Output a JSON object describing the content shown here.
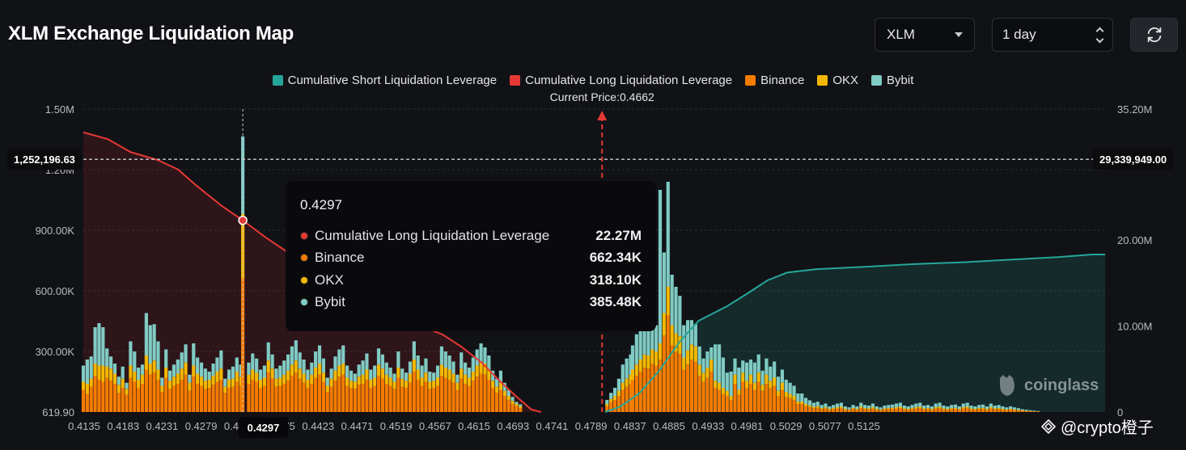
{
  "title": "XLM Exchange Liquidation Map",
  "controls": {
    "symbol": "XLM",
    "range": "1 day"
  },
  "legend": [
    {
      "label": "Cumulative Short Liquidation Leverage",
      "color": "#26a69a"
    },
    {
      "label": "Cumulative Long Liquidation Leverage",
      "color": "#e53935"
    },
    {
      "label": "Binance",
      "color": "#f57c00"
    },
    {
      "label": "OKX",
      "color": "#f5b800"
    },
    {
      "label": "Bybit",
      "color": "#80cbc4"
    }
  ],
  "current_price_label": "Current Price:0.4662",
  "tooltip": {
    "title": "0.4297",
    "rows": [
      {
        "name": "Cumulative Long Liquidation Leverage",
        "value": "22.27M",
        "color": "#e53935"
      },
      {
        "name": "Binance",
        "value": "662.34K",
        "color": "#f57c00"
      },
      {
        "name": "OKX",
        "value": "318.10K",
        "color": "#f5b800"
      },
      {
        "name": "Bybit",
        "value": "385.48K",
        "color": "#80cbc4"
      }
    ]
  },
  "ref_left_label": "1,252,196.63",
  "ref_right_label": "29,339,949.00",
  "x_active_label": "0.4297",
  "watermark": "coinglass",
  "handle": "@crypto橙子",
  "chart_data": {
    "type": "bar",
    "title": "XLM Exchange Liquidation Map",
    "x_ticks": [
      "0.4135",
      "0.4183",
      "0.4231",
      "0.4279",
      "0.4327",
      "0.4375",
      "0.4423",
      "0.4471",
      "0.4519",
      "0.4567",
      "0.4615",
      "0.4693",
      "0.4741",
      "0.4789",
      "0.4837",
      "0.4885",
      "0.4933",
      "0.4981",
      "0.5029",
      "0.5077",
      "0.5125"
    ],
    "y_left_ticks": [
      "619.90",
      "300.00K",
      "600.00K",
      "900.00K",
      "1.20M",
      "1.50M"
    ],
    "y_left_range": [
      0,
      1500000
    ],
    "y_right_ticks": [
      "0",
      "10.00M",
      "20.00M",
      "35.20M"
    ],
    "y_right_range": [
      0,
      35200000
    ],
    "x_range": [
      0.4135,
      0.5173
    ],
    "current_price": 0.4662,
    "highlight_price": 0.4297,
    "ref_left_value": 1252196.63,
    "ref_right_value": 29339949.0,
    "series_names": [
      "Binance",
      "OKX",
      "Bybit"
    ],
    "bar_prices": [
      0.4135,
      0.4139,
      0.4143,
      0.4147,
      0.4151,
      0.4155,
      0.4159,
      0.4163,
      0.4167,
      0.4171,
      0.4175,
      0.4179,
      0.4183,
      0.4187,
      0.4191,
      0.4195,
      0.4199,
      0.4203,
      0.4207,
      0.4211,
      0.4215,
      0.4219,
      0.4223,
      0.4227,
      0.4231,
      0.4235,
      0.4239,
      0.4243,
      0.4247,
      0.4251,
      0.4255,
      0.4259,
      0.4263,
      0.4267,
      0.4271,
      0.4275,
      0.4279,
      0.4283,
      0.4287,
      0.4291,
      0.4295,
      0.4297,
      0.4303,
      0.4307,
      0.4311,
      0.4315,
      0.4319,
      0.4323,
      0.4327,
      0.4331,
      0.4335,
      0.4339,
      0.4343,
      0.4347,
      0.4351,
      0.4355,
      0.4359,
      0.4363,
      0.4367,
      0.4371,
      0.4375,
      0.4379,
      0.4383,
      0.4387,
      0.4391,
      0.4395,
      0.4399,
      0.4403,
      0.4407,
      0.4411,
      0.4415,
      0.4419,
      0.4423,
      0.4427,
      0.4431,
      0.4435,
      0.4439,
      0.4443,
      0.4447,
      0.4451,
      0.4455,
      0.4459,
      0.4463,
      0.4467,
      0.4471,
      0.4475,
      0.4479,
      0.4483,
      0.4487,
      0.4491,
      0.4495,
      0.4499,
      0.4503,
      0.4507,
      0.4511,
      0.4515,
      0.4519,
      0.4523,
      0.4527,
      0.4531,
      0.4535,
      0.4539,
      0.4543,
      0.4547,
      0.4551,
      0.4555,
      0.4559,
      0.4563,
      0.4567,
      0.4571,
      0.4575,
      0.4579,
      0.4667,
      0.4671,
      0.4675,
      0.4679,
      0.4683,
      0.4687,
      0.4691,
      0.4693,
      0.4697,
      0.4701,
      0.4705,
      0.4709,
      0.4713,
      0.4717,
      0.4721,
      0.4725,
      0.4729,
      0.4733,
      0.4737,
      0.4741,
      0.4745,
      0.4749,
      0.4753,
      0.4757,
      0.4761,
      0.4765,
      0.4769,
      0.4773,
      0.4777,
      0.4781,
      0.4785,
      0.4789,
      0.4793,
      0.4797,
      0.4801,
      0.4805,
      0.4809,
      0.4813,
      0.4817,
      0.4821,
      0.4825,
      0.4829,
      0.4833,
      0.4837,
      0.4841,
      0.4845,
      0.4849,
      0.4853,
      0.4857,
      0.4861,
      0.4865,
      0.4869,
      0.4873,
      0.4877,
      0.4881,
      0.4885,
      0.4889,
      0.4893,
      0.4897,
      0.4901,
      0.4905,
      0.4909,
      0.4913,
      0.4917,
      0.4921,
      0.4925,
      0.4929,
      0.4933,
      0.4937,
      0.4941,
      0.4945,
      0.4949,
      0.4953,
      0.4957,
      0.4961,
      0.4965,
      0.4969,
      0.4973,
      0.4977,
      0.4981,
      0.4985,
      0.4989,
      0.4993,
      0.4997,
      0.5001,
      0.5005,
      0.5009,
      0.5013,
      0.5017,
      0.5021,
      0.5025,
      0.5029,
      0.5033,
      0.5037,
      0.5041,
      0.5045,
      0.5049,
      0.5053,
      0.5057,
      0.5061,
      0.5065,
      0.5069,
      0.5073,
      0.5077,
      0.5081,
      0.5085,
      0.5089,
      0.5093,
      0.5097,
      0.5101,
      0.5105,
      0.5109,
      0.5113,
      0.5117,
      0.5121,
      0.5125,
      0.5129,
      0.5133,
      0.5137,
      0.5141,
      0.5145,
      0.5149,
      0.5153,
      0.5157,
      0.5161,
      0.5165,
      0.5169,
      0.5173
    ],
    "binance": [
      110,
      90,
      125,
      180,
      160,
      150,
      170,
      155,
      140,
      95,
      120,
      85,
      170,
      150,
      120,
      140,
      210,
      185,
      195,
      160,
      100,
      170,
      115,
      130,
      140,
      160,
      185,
      105,
      175,
      140,
      130,
      115,
      120,
      135,
      150,
      160,
      95,
      120,
      125,
      150,
      130,
      662,
      140,
      160,
      150,
      120,
      130,
      195,
      165,
      125,
      130,
      140,
      155,
      180,
      195,
      165,
      145,
      120,
      140,
      170,
      185,
      150,
      100,
      125,
      155,
      175,
      185,
      130,
      120,
      115,
      135,
      140,
      160,
      120,
      130,
      180,
      165,
      140,
      130,
      115,
      170,
      125,
      120,
      145,
      200,
      160,
      130,
      150,
      115,
      120,
      130,
      180,
      170,
      160,
      145,
      110,
      165,
      140,
      130,
      155,
      175,
      190,
      185,
      160,
      120,
      95,
      110,
      80,
      60,
      40,
      30,
      20,
      30,
      50,
      60,
      80,
      110,
      125,
      140,
      160,
      180,
      200,
      220,
      215,
      240,
      230,
      260,
      380,
      480,
      330,
      300,
      290,
      210,
      235,
      260,
      250,
      180,
      150,
      170,
      200,
      120,
      110,
      90,
      80,
      60,
      140,
      85,
      150,
      120,
      140,
      110,
      150,
      105,
      140,
      120,
      130,
      80,
      110,
      75,
      70,
      60,
      40,
      40,
      30,
      25,
      20,
      22,
      15,
      18,
      12,
      15,
      18,
      20,
      12,
      10,
      15,
      12,
      20,
      15,
      14,
      18,
      12,
      10,
      14,
      15,
      16,
      18,
      20,
      14,
      12,
      15,
      18,
      20,
      14,
      15,
      12,
      18,
      20,
      14,
      12,
      15,
      16,
      12,
      18,
      20,
      14,
      12,
      15,
      16,
      12,
      18,
      14,
      15,
      12,
      10,
      12,
      10,
      8,
      6,
      5,
      4,
      3,
      2
    ],
    "okx": [
      40,
      50,
      40,
      60,
      70,
      80,
      55,
      60,
      50,
      40,
      45,
      30,
      60,
      50,
      40,
      45,
      70,
      55,
      60,
      50,
      30,
      50,
      40,
      45,
      50,
      55,
      60,
      40,
      55,
      50,
      45,
      40,
      40,
      45,
      50,
      55,
      30,
      40,
      40,
      50,
      45,
      318,
      45,
      50,
      45,
      40,
      40,
      60,
      50,
      40,
      40,
      45,
      50,
      55,
      60,
      50,
      45,
      40,
      45,
      50,
      55,
      45,
      30,
      40,
      50,
      55,
      55,
      40,
      35,
      35,
      40,
      45,
      50,
      40,
      40,
      55,
      50,
      45,
      40,
      35,
      50,
      40,
      35,
      45,
      60,
      50,
      40,
      45,
      35,
      35,
      40,
      55,
      50,
      50,
      45,
      35,
      50,
      45,
      40,
      45,
      55,
      60,
      55,
      50,
      35,
      30,
      35,
      25,
      20,
      15,
      10,
      8,
      10,
      15,
      20,
      25,
      35,
      40,
      45,
      50,
      55,
      60,
      65,
      65,
      70,
      70,
      80,
      110,
      140,
      100,
      90,
      85,
      60,
      70,
      75,
      75,
      55,
      45,
      50,
      60,
      35,
      35,
      30,
      25,
      20,
      45,
      25,
      45,
      35,
      45,
      35,
      45,
      30,
      45,
      35,
      40,
      25,
      35,
      25,
      20,
      20,
      12,
      12,
      10,
      8,
      6,
      7,
      5,
      6,
      4,
      5,
      6,
      6,
      4,
      3,
      5,
      4,
      6,
      5,
      4,
      6,
      4,
      3,
      4,
      5,
      5,
      6,
      6,
      4,
      4,
      5,
      6,
      6,
      4,
      5,
      4,
      6,
      6,
      4,
      4,
      5,
      5,
      4,
      6,
      6,
      4,
      4,
      5,
      5,
      4,
      6,
      4,
      5,
      4,
      3,
      4,
      3,
      3,
      2,
      2,
      1,
      1,
      1
    ],
    "bybit": [
      80,
      120,
      110,
      180,
      210,
      190,
      90,
      60,
      50,
      40,
      60,
      30,
      120,
      100,
      60,
      50,
      210,
      190,
      180,
      140,
      40,
      90,
      50,
      60,
      70,
      80,
      90,
      40,
      110,
      80,
      70,
      60,
      40,
      60,
      70,
      90,
      40,
      50,
      60,
      70,
      60,
      385,
      60,
      80,
      70,
      50,
      60,
      90,
      70,
      50,
      60,
      70,
      80,
      90,
      100,
      80,
      70,
      50,
      60,
      80,
      90,
      70,
      40,
      50,
      70,
      80,
      90,
      60,
      50,
      40,
      60,
      70,
      80,
      50,
      60,
      80,
      70,
      60,
      50,
      40,
      80,
      50,
      40,
      60,
      90,
      70,
      60,
      70,
      50,
      40,
      60,
      90,
      80,
      70,
      60,
      40,
      80,
      60,
      50,
      70,
      80,
      90,
      80,
      70,
      50,
      40,
      60,
      40,
      30,
      20,
      10,
      10,
      20,
      30,
      40,
      60,
      90,
      100,
      100,
      120,
      150,
      250,
      180,
      200,
      150,
      130,
      760,
      300,
      520,
      250,
      230,
      200,
      160,
      150,
      120,
      110,
      90,
      70,
      80,
      60,
      180,
      190,
      150,
      90,
      120,
      80,
      110,
      60,
      90,
      75,
      100,
      90,
      70,
      80,
      70,
      80,
      70,
      65,
      60,
      55,
      50,
      40,
      40,
      30,
      25,
      20,
      22,
      15,
      18,
      12,
      15,
      18,
      20,
      12,
      10,
      15,
      12,
      20,
      15,
      14,
      18,
      12,
      10,
      14,
      15,
      16,
      18,
      20,
      14,
      12,
      15,
      18,
      20,
      14,
      15,
      12,
      18,
      20,
      14,
      12,
      15,
      16,
      12,
      18,
      20,
      14,
      12,
      15,
      16,
      12,
      18,
      14,
      15,
      12,
      10,
      12,
      10,
      8,
      6,
      5,
      4,
      3,
      2
    ],
    "long_cumulative": [
      [
        0.4135,
        32.5
      ],
      [
        0.416,
        31.7
      ],
      [
        0.4183,
        30.2
      ],
      [
        0.421,
        29.3
      ],
      [
        0.4231,
        28.2
      ],
      [
        0.425,
        26.3
      ],
      [
        0.4275,
        24.0
      ],
      [
        0.4297,
        22.27
      ],
      [
        0.432,
        20.3
      ],
      [
        0.435,
        18.0
      ],
      [
        0.4375,
        15.5
      ],
      [
        0.44,
        14.2
      ],
      [
        0.4423,
        13.0
      ],
      [
        0.445,
        11.8
      ],
      [
        0.4471,
        10.3
      ],
      [
        0.45,
        9.0
      ],
      [
        0.4519,
        7.6
      ],
      [
        0.454,
        5.7
      ],
      [
        0.456,
        3.4
      ],
      [
        0.4575,
        1.8
      ],
      [
        0.459,
        0.3
      ],
      [
        0.46,
        0.0
      ]
    ],
    "short_cumulative": [
      [
        0.4665,
        0.0
      ],
      [
        0.468,
        0.6
      ],
      [
        0.47,
        2.2
      ],
      [
        0.472,
        4.8
      ],
      [
        0.4741,
        8.2
      ],
      [
        0.476,
        10.6
      ],
      [
        0.4789,
        12.3
      ],
      [
        0.481,
        13.8
      ],
      [
        0.483,
        15.3
      ],
      [
        0.485,
        16.2
      ],
      [
        0.488,
        16.6
      ],
      [
        0.4933,
        16.9
      ],
      [
        0.4981,
        17.2
      ],
      [
        0.5029,
        17.4
      ],
      [
        0.5077,
        17.7
      ],
      [
        0.5125,
        18.0
      ],
      [
        0.516,
        18.3
      ],
      [
        0.5173,
        18.3
      ]
    ]
  }
}
